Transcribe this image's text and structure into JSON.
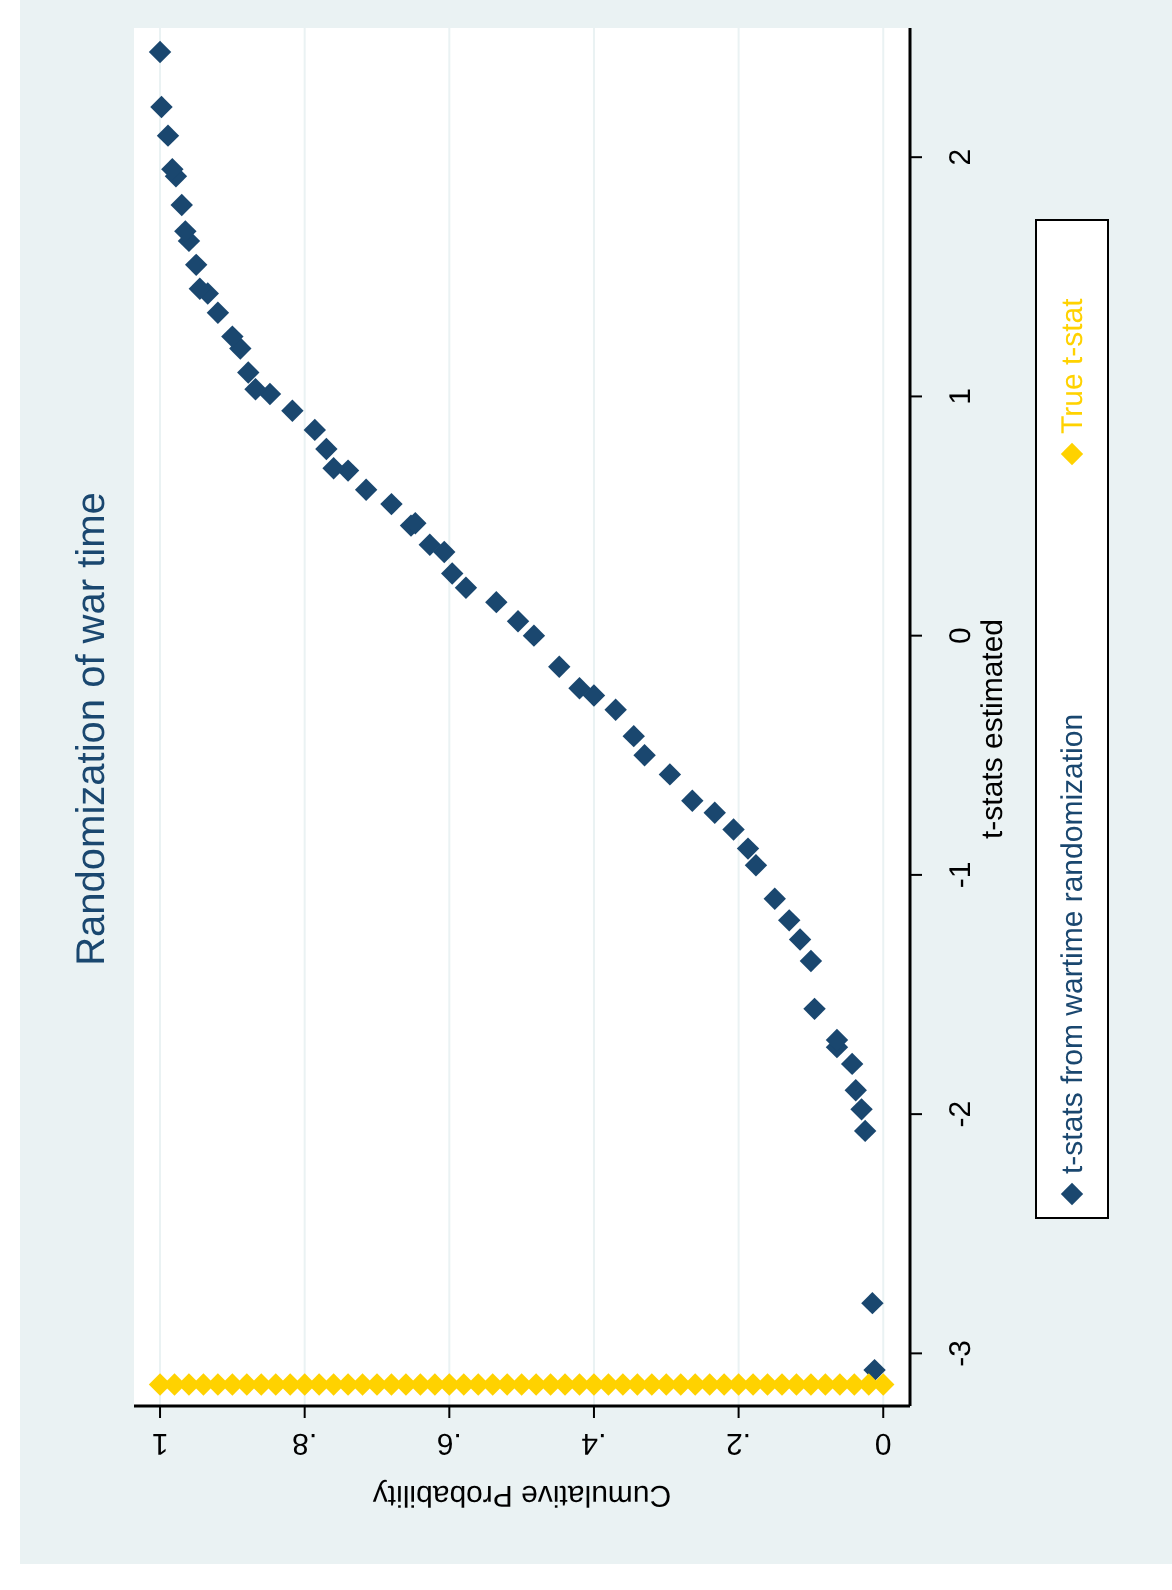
{
  "chart_data": {
    "type": "scatter",
    "title": "Randomization of war time",
    "xlabel": "Cumulative Probability",
    "ylabel": "t-stats estimated",
    "xlim": [
      1.036,
      -0.037
    ],
    "ylim": [
      -3.22,
      2.54
    ],
    "yticks": [
      -3,
      -2,
      -1,
      0,
      1,
      2
    ],
    "xticks": [
      1,
      {
        "value": 0.8,
        "label": ".8"
      },
      {
        "value": 0.6,
        "label": ".6"
      },
      {
        "value": 0.4,
        "label": ".4"
      },
      {
        "value": 0.2,
        "label": ".2"
      },
      0
    ],
    "grid": "x",
    "legend": "right",
    "marker": "diamond",
    "series": [
      {
        "name": "t-stats from wartime randomization",
        "color": "#1a476f",
        "x": [
          0.012,
          0.015,
          0.025,
          0.03,
          0.038,
          0.043,
          0.064,
          0.064,
          0.095,
          0.1,
          0.115,
          0.13,
          0.15,
          0.176,
          0.187,
          0.207,
          0.233,
          0.264,
          0.295,
          0.33,
          0.345,
          0.37,
          0.4,
          0.42,
          0.448,
          0.483,
          0.505,
          0.535,
          0.577,
          0.596,
          0.607,
          0.627,
          0.653,
          0.647,
          0.68,
          0.715,
          0.74,
          0.76,
          0.77,
          0.786,
          0.817,
          0.848,
          0.868,
          0.878,
          0.889,
          0.9,
          0.92,
          0.934,
          0.945,
          0.95,
          0.96,
          0.965,
          0.97,
          0.978,
          0.983,
          0.989,
          0.998,
          1.0
        ],
        "values": [
          -3.07,
          -2.79,
          -2.07,
          -1.98,
          -1.9,
          -1.79,
          -1.72,
          -1.69,
          -1.56,
          -1.36,
          -1.27,
          -1.19,
          -1.1,
          -0.96,
          -0.89,
          -0.81,
          -0.74,
          -0.69,
          -0.58,
          -0.5,
          -0.42,
          -0.31,
          -0.25,
          -0.22,
          -0.13,
          0.0,
          0.06,
          0.14,
          0.2,
          0.26,
          0.35,
          0.38,
          0.46,
          0.47,
          0.55,
          0.61,
          0.69,
          0.7,
          0.78,
          0.86,
          0.94,
          1.01,
          1.03,
          1.1,
          1.2,
          1.25,
          1.35,
          1.43,
          1.45,
          1.55,
          1.65,
          1.69,
          1.8,
          1.92,
          1.95,
          2.09,
          2.21,
          2.44
        ]
      },
      {
        "name": "True t-stat",
        "color": "#ffd200",
        "x": [
          0,
          0.02,
          0.04,
          0.06,
          0.08,
          0.1,
          0.12,
          0.14,
          0.16,
          0.18,
          0.2,
          0.22,
          0.24,
          0.26,
          0.28,
          0.3,
          0.32,
          0.34,
          0.36,
          0.38,
          0.4,
          0.42,
          0.44,
          0.46,
          0.48,
          0.5,
          0.52,
          0.54,
          0.56,
          0.58,
          0.6,
          0.62,
          0.64,
          0.66,
          0.68,
          0.7,
          0.72,
          0.74,
          0.76,
          0.78,
          0.8,
          0.82,
          0.84,
          0.86,
          0.88,
          0.9,
          0.92,
          0.94,
          0.96,
          0.98,
          1
        ],
        "values": [
          -3.13,
          -3.13,
          -3.13,
          -3.13,
          -3.13,
          -3.13,
          -3.13,
          -3.13,
          -3.13,
          -3.13,
          -3.13,
          -3.13,
          -3.13,
          -3.13,
          -3.13,
          -3.13,
          -3.13,
          -3.13,
          -3.13,
          -3.13,
          -3.13,
          -3.13,
          -3.13,
          -3.13,
          -3.13,
          -3.13,
          -3.13,
          -3.13,
          -3.13,
          -3.13,
          -3.13,
          -3.13,
          -3.13,
          -3.13,
          -3.13,
          -3.13,
          -3.13,
          -3.13,
          -3.13,
          -3.13,
          -3.13,
          -3.13,
          -3.13,
          -3.13,
          -3.13,
          -3.13,
          -3.13,
          -3.13,
          -3.13,
          -3.13,
          -3.13
        ]
      }
    ]
  }
}
